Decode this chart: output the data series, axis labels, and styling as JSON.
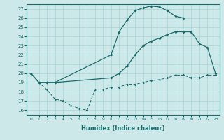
{
  "xlabel": "Humidex (Indice chaleur)",
  "xlim": [
    -0.5,
    23.5
  ],
  "ylim": [
    15.5,
    27.5
  ],
  "yticks": [
    16,
    17,
    18,
    19,
    20,
    21,
    22,
    23,
    24,
    25,
    26,
    27
  ],
  "xticks": [
    0,
    1,
    2,
    3,
    4,
    5,
    6,
    7,
    8,
    9,
    10,
    11,
    12,
    13,
    14,
    15,
    16,
    17,
    18,
    19,
    20,
    21,
    22,
    23
  ],
  "bg_color": "#cde8e8",
  "line_color": "#1a6b6b",
  "line1_x": [
    0,
    1,
    2,
    3,
    10,
    11,
    12,
    13,
    14,
    15,
    16,
    17,
    18,
    19
  ],
  "line1_y": [
    20.0,
    19.0,
    19.0,
    19.0,
    22.0,
    24.5,
    25.8,
    26.8,
    27.1,
    27.3,
    27.2,
    26.8,
    26.2,
    26.0
  ],
  "line2_x": [
    0,
    1,
    2,
    3,
    10,
    11,
    12,
    13,
    14,
    15,
    16,
    17,
    18,
    19,
    20,
    21,
    22,
    23
  ],
  "line2_y": [
    20.0,
    19.0,
    19.0,
    19.0,
    19.5,
    20.0,
    20.8,
    22.0,
    23.0,
    23.5,
    23.8,
    24.2,
    24.5,
    24.5,
    24.5,
    23.2,
    22.8,
    20.0
  ],
  "line3_x": [
    1,
    2,
    3,
    4,
    5,
    6,
    7,
    8,
    9,
    10,
    11,
    12,
    13,
    14,
    15,
    16,
    17,
    18,
    19,
    20,
    21,
    22,
    23
  ],
  "line3_y": [
    19.0,
    18.2,
    17.2,
    17.0,
    16.5,
    16.2,
    16.0,
    18.2,
    18.2,
    18.5,
    18.5,
    18.8,
    18.8,
    19.0,
    19.2,
    19.3,
    19.5,
    19.8,
    19.8,
    19.5,
    19.5,
    19.8,
    19.8
  ]
}
